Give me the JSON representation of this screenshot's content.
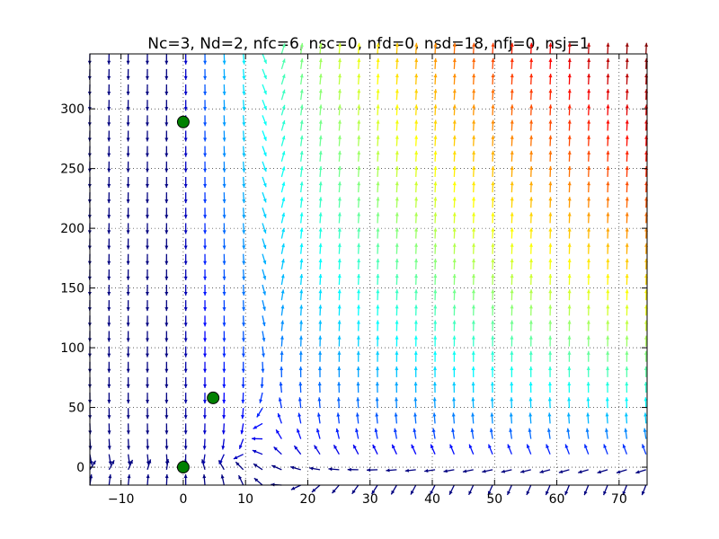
{
  "chart_data": {
    "type": "quiver",
    "title": "Nc=3, Nd=2, nfc=6, nsc=0, nfd=0, nsd=18, nfj=0, nsj=1",
    "xlabel": "",
    "ylabel": "",
    "xlim": [
      -15,
      74.5
    ],
    "ylim": [
      -15,
      346
    ],
    "x_ticks": [
      -10,
      0,
      10,
      20,
      30,
      40,
      50,
      60,
      70
    ],
    "y_ticks": [
      0,
      50,
      100,
      150,
      200,
      250,
      300
    ],
    "grid": true,
    "grid_style": "dotted",
    "colormap": "jet",
    "field_grid": {
      "x_start": -15,
      "x_step": 3.08,
      "x_count": 30,
      "y_start": -15,
      "y_step": 12.9,
      "y_count": 29
    },
    "fixed_points": [
      {
        "x": 0,
        "y": 289
      },
      {
        "x": 4.8,
        "y": 58
      },
      {
        "x": 0,
        "y": 0
      }
    ],
    "marker_color": "#008000"
  }
}
